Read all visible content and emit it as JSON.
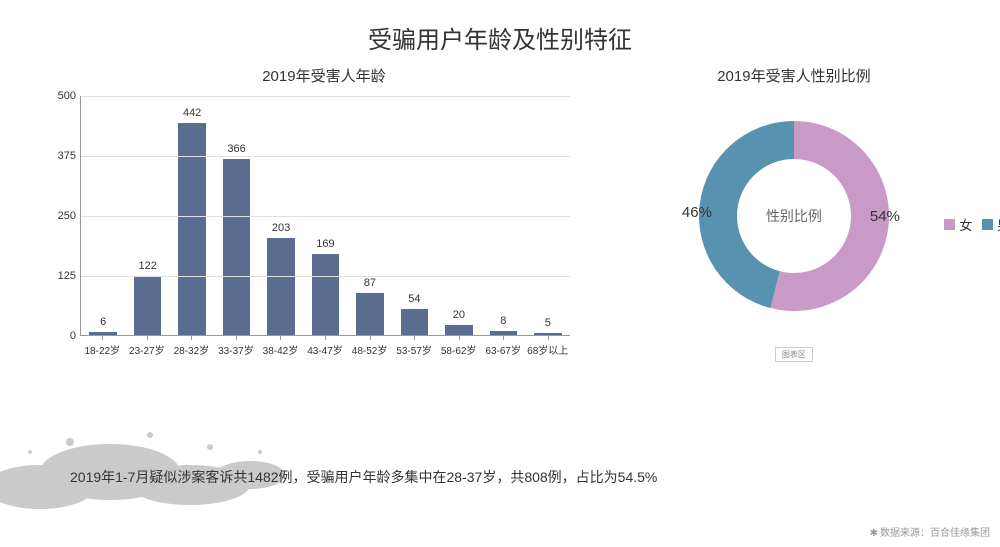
{
  "main_title": "受骗用户年龄及性别特征",
  "bar_chart": {
    "title": "2019年受害人年龄",
    "type": "bar",
    "categories": [
      "18-22岁",
      "23-27岁",
      "28-32岁",
      "33-37岁",
      "38-42岁",
      "43-47岁",
      "48-52岁",
      "53-57岁",
      "58-62岁",
      "63-67岁",
      "68岁以上"
    ],
    "values": [
      6,
      122,
      442,
      366,
      203,
      169,
      87,
      54,
      20,
      8,
      5
    ],
    "bar_color": "#5a6c8f",
    "ylim": [
      0,
      500
    ],
    "ytick_step": 125,
    "yticks": [
      0,
      125,
      250,
      375,
      500
    ],
    "grid_color": "#e0e0e0",
    "axis_color": "#999999",
    "label_fontsize": 11,
    "category_fontsize": 10,
    "bar_width": 0.62,
    "background_color": "#ffffff"
  },
  "donut_chart": {
    "title": "2019年受害人性别比例",
    "type": "donut",
    "center_label": "性别比例",
    "inner_radius_pct": 60,
    "segments": [
      {
        "name": "女",
        "value": 54,
        "color": "#c999c8",
        "display": "54%"
      },
      {
        "name": "男",
        "value": 46,
        "color": "#5793b0",
        "display": "46%"
      }
    ],
    "start_angle_deg": -90,
    "legend_label_female": "女",
    "legend_label_male": "男",
    "legend_box_text": "图表区",
    "pct_fontsize": 15,
    "center_fontsize": 14
  },
  "bottom_note": "2019年1-7月疑似涉案客诉共1482例，受骗用户年龄多集中在28-37岁，共808例，占比为54.5%",
  "source_note": "数据来源：百合佳缘集团",
  "colors": {
    "title_text": "#333333",
    "body_text": "#333333",
    "muted_text": "#999999",
    "background": "#ffffff"
  }
}
